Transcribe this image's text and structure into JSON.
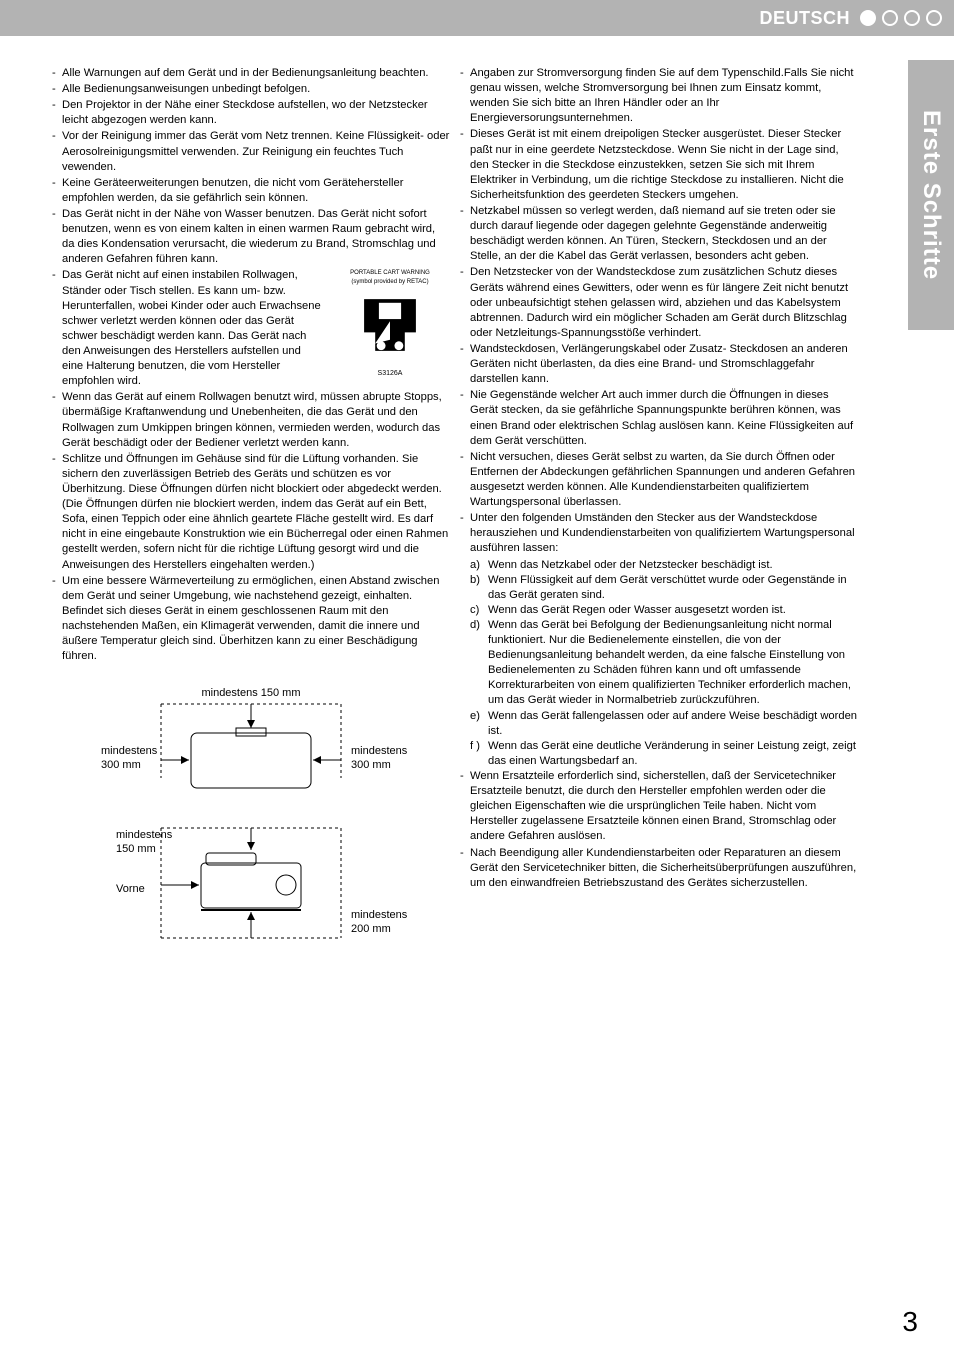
{
  "header": {
    "language": "DEUTSCH"
  },
  "sideTab": {
    "label": "Erste Schritte"
  },
  "pageNumber": "3",
  "cart": {
    "caption1": "PORTABLE CART WARNING",
    "caption2": "(symbol provided by RETAC)",
    "code": "S3126A"
  },
  "diagram": {
    "top": "mindestens 150 mm",
    "left1": "mindestens",
    "left2": "300 mm",
    "right1": "mindestens",
    "right2": "300 mm",
    "bottomLeft1": "mindestens",
    "bottomLeft2": "150 mm",
    "front": "Vorne",
    "bottomRight1": "mindestens",
    "bottomRight2": "200 mm"
  },
  "left": [
    "Alle Warnungen auf dem Gerät und in der Bedienungsanleitung beachten.",
    "Alle Bedienungsanweisungen unbedingt befolgen.",
    "Den Projektor in der Nähe einer Steckdose aufstellen, wo der Netzstecker leicht abgezogen werden kann.",
    "Vor der Reinigung immer das Gerät vom Netz trennen. Keine Flüssigkeit- oder Aerosolreinigungsmittel verwenden. Zur Reinigung ein feuchtes Tuch vewenden.",
    "Keine Geräteerweiterungen benutzen, die nicht vom Gerätehersteller empfohlen werden, da sie gefährlich sein können.",
    "Das Gerät nicht in der Nähe von Wasser benutzen. Das Gerät nicht sofort benutzen, wenn es von einem kalten in einen warmen Raum gebracht wird, da dies Kondensation verursacht, die wiederum zu Brand, Stromschlag und anderen Gefahren führen kann.",
    "Das Gerät nicht auf einen instabilen Rollwagen, Ständer oder Tisch stellen. Es kann um- bzw. Herunterfallen, wobei Kinder oder auch Erwachsene schwer verletzt werden können oder das Gerät schwer beschädigt werden kann. Das Gerät nach den Anweisungen des Herstellers aufstellen und eine Halterung benutzen, die vom Hersteller empfohlen wird.",
    "Wenn das Gerät auf einem Rollwagen benutzt wird, müssen abrupte Stopps, übermäßige Kraftanwendung und Unebenheiten, die das Gerät und den Rollwagen zum Umkippen bringen können, vermieden werden, wodurch das Gerät beschädigt oder der Bediener verletzt werden kann.",
    "Schlitze und Öffnungen im Gehäuse sind für die Lüftung vorhanden. Sie sichern den zuverlässigen Betrieb des Geräts und schützen es vor Überhitzung. Diese Öffnungen dürfen nicht blockiert oder abgedeckt werden. (Die Öffnungen dürfen nie blockiert werden, indem das Gerät auf ein Bett, Sofa, einen Teppich oder eine ähnlich geartete Fläche gestellt wird. Es darf nicht in eine eingebaute Konstruktion wie ein Bücherregal oder einen Rahmen gestellt werden, sofern nicht für die richtige Lüftung gesorgt wird und die Anweisungen des Herstellers eingehalten werden.)",
    "Um eine bessere Wärmeverteilung zu ermöglichen, einen Abstand zwischen dem Gerät und seiner Umgebung, wie nachstehend gezeigt, einhalten. Befindet sich dieses Gerät in einem geschlossenen Raum mit den nachstehenden Maßen, ein Klimagerät verwenden, damit die innere und äußere Temperatur gleich sind. Überhitzen kann zu einer Beschädigung führen."
  ],
  "right": [
    "Angaben zur Stromversorgung finden Sie auf dem Typenschild.Falls Sie nicht genau wissen, welche Stromversorgung bei Ihnen zum Einsatz kommt, wenden Sie sich bitte an Ihren Händler oder an Ihr Energieversorungsunternehmen.",
    "Dieses Gerät ist mit einem dreipoligen Stecker ausgerüstet. Dieser Stecker paßt nur in eine geerdete Netzsteckdose. Wenn Sie nicht in der Lage sind, den Stecker in die Steckdose einzustekken, setzen Sie sich mit Ihrem Elektriker in Verbindung, um die richtige Steckdose zu installieren. Nicht die Sicherheitsfunktion des geerdeten Steckers umgehen.",
    "Netzkabel müssen so verlegt werden, daß niemand auf sie treten oder sie durch darauf liegende oder dagegen gelehnte Gegenstände anderweitig beschädigt werden können. An Türen, Steckern, Steckdosen und an der Stelle, an der die Kabel das Gerät verlassen, besonders acht geben.",
    "Den Netzstecker von der Wandsteckdose zum zusätzlichen Schutz dieses Geräts während eines Gewitters, oder wenn es für längere Zeit nicht benutzt oder unbeaufsichtigt stehen gelassen wird, abziehen und das Kabelsystem abtrennen. Dadurch wird ein möglicher Schaden am Gerät durch Blitzschlag oder Netzleitungs-Spannungsstöße verhindert.",
    "Wandsteckdosen, Verlängerungskabel oder Zusatz- Steckdosen an anderen Geräten nicht überlasten, da dies eine Brand- und Stromschlaggefahr darstellen kann.",
    "Nie Gegenstände welcher Art auch immer durch die Öffnungen in dieses Gerät stecken, da sie gefährliche Spannungspunkte berühren können, was einen Brand oder elektrischen Schlag auslösen kann. Keine Flüssigkeiten auf dem Gerät verschütten.",
    "Nicht versuchen, dieses Gerät selbst zu warten, da Sie durch Öffnen oder Entfernen der Abdeckungen gefährlichen Spannungen und anderen Gefahren ausgesetzt werden können. Alle Kundendienstarbeiten qualifiziertem Wartungspersonal überlassen.",
    "Unter den folgenden Umständen den Stecker aus der Wandsteckdose herausziehen und Kundendienstarbeiten von qualifiziertem Wartungspersonal ausführen lassen:"
  ],
  "subitems": [
    {
      "k": "a)",
      "t": "Wenn das Netzkabel oder der Netzstecker beschädigt ist."
    },
    {
      "k": "b)",
      "t": "Wenn Flüssigkeit auf dem Gerät verschüttet wurde oder Gegenstände in das Gerät geraten sind."
    },
    {
      "k": "c)",
      "t": "Wenn das Gerät Regen oder Wasser ausgesetzt worden ist."
    },
    {
      "k": "d)",
      "t": "Wenn das Gerät bei Befolgung der Bedienungsanleitung nicht normal funktioniert. Nur die Bedienelemente einstellen, die von der Bedienungsanleitung behandelt werden, da eine falsche Einstellung von Bedienelementen zu Schäden führen kann und oft umfassende Korrekturarbeiten von einem qualifizierten Techniker erforderlich machen, um das Gerät wieder in Normalbetrieb zurückzuführen."
    },
    {
      "k": "e)",
      "t": "Wenn das Gerät fallengelassen oder auf andere Weise beschädigt worden ist."
    },
    {
      "k": "f )",
      "t": "Wenn das Gerät eine deutliche Veränderung in seiner Leistung zeigt, zeigt das einen Wartungsbedarf an."
    }
  ],
  "rightTail": [
    "Wenn Ersatzteile erforderlich sind, sicherstellen, daß der Servicetechniker Ersatzteile benutzt, die durch den Hersteller empfohlen werden oder die gleichen Eigenschaften wie die ursprünglichen Teile haben. Nicht vom Hersteller zugelassene Ersatzteile können einen Brand, Stromschlag oder andere Gefahren auslösen.",
    "Nach Beendigung aller Kundendienstarbeiten oder Reparaturen an diesem Gerät den Servicetechniker bitten, die Sicherheitsüberprüfungen auszuführen, um den einwandfreien Betriebszustand des Gerätes sicherzustellen."
  ]
}
